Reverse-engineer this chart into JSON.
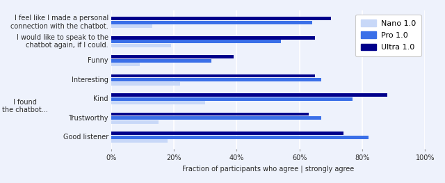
{
  "categories": [
    "I feel like I made a personal\nconnection with the chatbot.",
    "I would like to speak to the\nchatbot again, if I could.",
    "Funny",
    "Interesting",
    "Kind",
    "Trustworthy",
    "Good listener"
  ],
  "ylabel_left": "I found\nthe chatbot...",
  "series": {
    "Nano 1.0": [
      0.13,
      0.19,
      0.09,
      0.22,
      0.3,
      0.15,
      0.18
    ],
    "Pro 1.0": [
      0.64,
      0.54,
      0.32,
      0.67,
      0.77,
      0.67,
      0.82
    ],
    "Ultra 1.0": [
      0.7,
      0.65,
      0.39,
      0.65,
      0.88,
      0.63,
      0.74
    ]
  },
  "colors": {
    "Nano 1.0": "#c8d8f8",
    "Pro 1.0": "#3a6fe8",
    "Ultra 1.0": "#00008b"
  },
  "xlabel": "Fraction of participants who agree | strongly agree",
  "xlim": [
    0.0,
    1.0
  ],
  "xticks": [
    0.0,
    0.2,
    0.4,
    0.6,
    0.8,
    1.0
  ],
  "xticklabels": [
    "0%",
    "20%",
    "40%",
    "60%",
    "80%",
    "100%"
  ],
  "bar_height": 0.18,
  "background_color": "#eef2fc",
  "grid_color": "#ffffff",
  "text_color": "#2a2a2a",
  "legend_fontsize": 8,
  "axis_fontsize": 7,
  "ylabel_fontsize": 7
}
